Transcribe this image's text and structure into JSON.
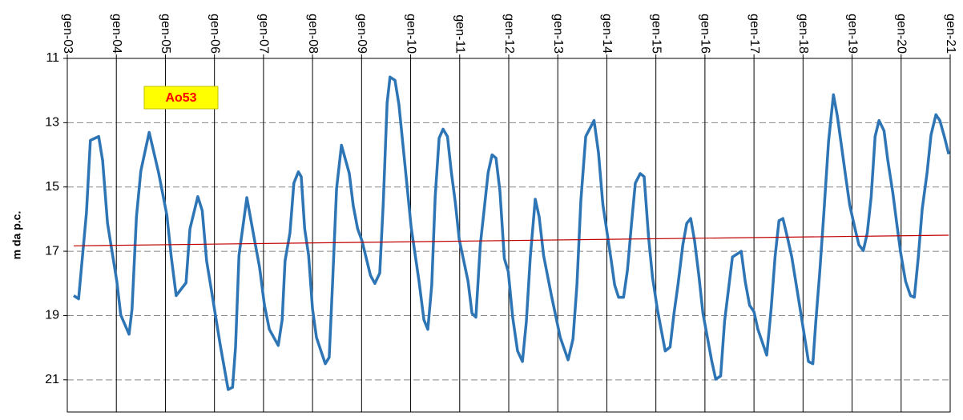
{
  "chart_data": {
    "type": "line",
    "y_label": "m da p.c.",
    "annotation": "Ao53",
    "xlim": [
      2003,
      2021
    ],
    "xticks": [
      {
        "value": 2003,
        "label": "gen-03"
      },
      {
        "value": 2004,
        "label": "gen-04"
      },
      {
        "value": 2005,
        "label": "gen-05"
      },
      {
        "value": 2006,
        "label": "gen-06"
      },
      {
        "value": 2007,
        "label": "gen-07"
      },
      {
        "value": 2008,
        "label": "gen-08"
      },
      {
        "value": 2009,
        "label": "gen-09"
      },
      {
        "value": 2010,
        "label": "gen-10"
      },
      {
        "value": 2011,
        "label": "gen-11"
      },
      {
        "value": 2012,
        "label": "gen-12"
      },
      {
        "value": 2013,
        "label": "gen-13"
      },
      {
        "value": 2014,
        "label": "gen-14"
      },
      {
        "value": 2015,
        "label": "gen-15"
      },
      {
        "value": 2016,
        "label": "gen-16"
      },
      {
        "value": 2017,
        "label": "gen-17"
      },
      {
        "value": 2018,
        "label": "gen-18"
      },
      {
        "value": 2019,
        "label": "gen-19"
      },
      {
        "value": 2020,
        "label": "gen-20"
      },
      {
        "value": 2021,
        "label": "gen-21"
      }
    ],
    "ylim": [
      11,
      22
    ],
    "y_inverted": true,
    "yticks": [
      11,
      13,
      15,
      17,
      19,
      21
    ],
    "grid": true,
    "series": [
      {
        "color": "#2e75b6",
        "x": [
          2003.13,
          2003.23,
          2003.39,
          2003.47,
          2003.64,
          2003.72,
          2003.82,
          2004.01,
          2004.09,
          2004.26,
          2004.32,
          2004.41,
          2004.5,
          2004.67,
          2004.86,
          2005.03,
          2005.12,
          2005.22,
          2005.42,
          2005.5,
          2005.66,
          2005.75,
          2005.84,
          2005.94,
          2006.12,
          2006.28,
          2006.37,
          2006.43,
          2006.5,
          2006.66,
          2006.82,
          2006.92,
          2007.02,
          2007.12,
          2007.3,
          2007.38,
          2007.44,
          2007.54,
          2007.62,
          2007.71,
          2007.77,
          2007.84,
          2007.92,
          2008.0,
          2008.08,
          2008.26,
          2008.34,
          2008.41,
          2008.49,
          2008.59,
          2008.75,
          2008.83,
          2008.92,
          2009.01,
          2009.18,
          2009.27,
          2009.37,
          2009.44,
          2009.52,
          2009.58,
          2009.68,
          2009.76,
          2009.85,
          2010.01,
          2010.17,
          2010.27,
          2010.35,
          2010.43,
          2010.5,
          2010.58,
          2010.66,
          2010.75,
          2010.83,
          2010.91,
          2010.99,
          2011.17,
          2011.25,
          2011.33,
          2011.42,
          2011.5,
          2011.58,
          2011.66,
          2011.74,
          2011.82,
          2011.91,
          2011.99,
          2012.08,
          2012.18,
          2012.28,
          2012.36,
          2012.44,
          2012.54,
          2012.62,
          2012.71,
          2012.87,
          2013.05,
          2013.21,
          2013.31,
          2013.39,
          2013.47,
          2013.57,
          2013.74,
          2013.83,
          2013.92,
          2014.08,
          2014.16,
          2014.24,
          2014.34,
          2014.42,
          2014.5,
          2014.58,
          2014.68,
          2014.76,
          2014.85,
          2014.93,
          2015.03,
          2015.19,
          2015.29,
          2015.37,
          2015.45,
          2015.55,
          2015.63,
          2015.71,
          2015.79,
          2015.88,
          2015.96,
          2016.14,
          2016.22,
          2016.32,
          2016.4,
          2016.48,
          2016.56,
          2016.74,
          2016.82,
          2016.91,
          2017.0,
          2017.08,
          2017.26,
          2017.35,
          2017.43,
          2017.51,
          2017.59,
          2017.69,
          2017.77,
          2017.93,
          2018.11,
          2018.2,
          2018.26,
          2018.34,
          2018.42,
          2018.52,
          2018.62,
          2018.7,
          2018.78,
          2018.87,
          2018.95,
          2019.05,
          2019.14,
          2019.23,
          2019.31,
          2019.39,
          2019.47,
          2019.55,
          2019.65,
          2019.73,
          2019.83,
          2019.91,
          2019.99,
          2020.09,
          2020.19,
          2020.27,
          2020.35,
          2020.43,
          2020.53,
          2020.61,
          2020.71,
          2020.79,
          2020.88,
          2020.97
        ],
        "values": [
          18.38,
          18.48,
          15.8,
          13.55,
          13.43,
          14.18,
          16.13,
          17.93,
          18.98,
          19.58,
          18.8,
          15.93,
          14.5,
          13.3,
          14.55,
          15.88,
          17.18,
          18.38,
          17.98,
          16.3,
          15.3,
          15.73,
          17.3,
          18.23,
          19.93,
          21.3,
          21.23,
          19.98,
          17.13,
          15.33,
          16.68,
          17.5,
          18.68,
          19.43,
          19.93,
          19.13,
          17.3,
          16.43,
          14.88,
          14.53,
          14.68,
          16.3,
          17.13,
          18.8,
          19.68,
          20.5,
          20.3,
          17.93,
          15.05,
          13.7,
          14.58,
          15.58,
          16.3,
          16.68,
          17.75,
          18.0,
          17.68,
          15.55,
          12.38,
          11.58,
          11.68,
          12.43,
          13.8,
          16.25,
          17.93,
          19.13,
          19.43,
          18.05,
          15.3,
          13.48,
          13.2,
          13.43,
          14.55,
          15.48,
          16.63,
          17.93,
          18.93,
          19.05,
          16.8,
          15.68,
          14.55,
          14.0,
          14.1,
          15.13,
          17.23,
          17.63,
          19.05,
          20.1,
          20.43,
          19.18,
          17.18,
          15.38,
          15.93,
          17.13,
          18.38,
          19.68,
          20.38,
          19.73,
          18.05,
          15.43,
          13.43,
          12.93,
          13.93,
          15.55,
          17.18,
          18.05,
          18.43,
          18.43,
          17.58,
          16.18,
          14.88,
          14.58,
          14.68,
          16.55,
          17.8,
          18.8,
          20.1,
          19.98,
          18.93,
          18.05,
          16.8,
          16.13,
          15.98,
          16.68,
          17.8,
          18.93,
          20.43,
          20.98,
          20.88,
          19.18,
          18.18,
          17.18,
          17.0,
          17.93,
          18.68,
          18.88,
          19.43,
          20.23,
          18.8,
          17.18,
          16.05,
          15.98,
          16.63,
          17.18,
          18.68,
          20.43,
          20.5,
          19.18,
          17.68,
          15.93,
          13.58,
          12.13,
          12.8,
          13.68,
          14.68,
          15.55,
          16.23,
          16.8,
          16.98,
          16.43,
          15.3,
          13.43,
          12.93,
          13.25,
          14.18,
          15.18,
          16.13,
          17.05,
          17.93,
          18.38,
          18.43,
          17.18,
          15.68,
          14.55,
          13.38,
          12.75,
          12.93,
          13.43,
          13.98
        ]
      },
      {
        "color": "#c00000",
        "x": [
          2003.13,
          2020.97
        ],
        "values": [
          16.83,
          16.5
        ]
      }
    ]
  }
}
